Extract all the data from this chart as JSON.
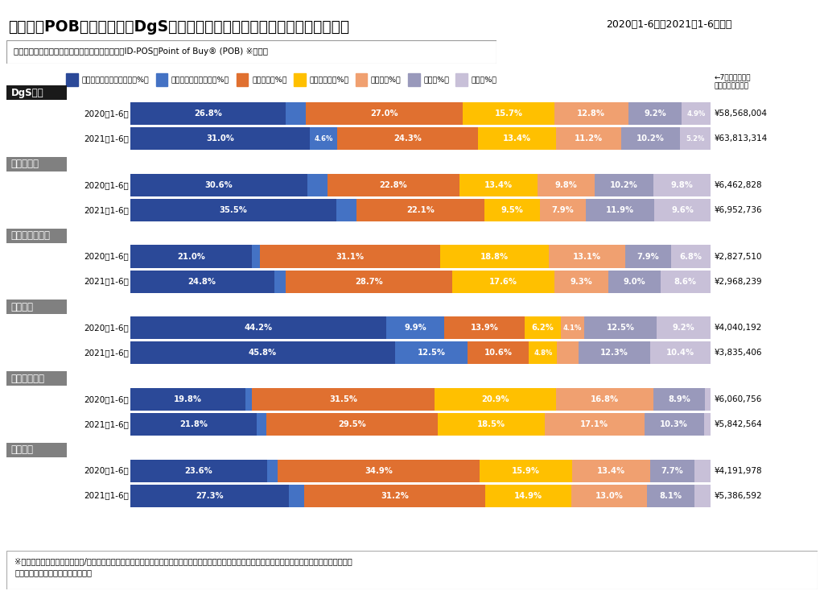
{
  "title": "図表１）POBデータ分析：DgSレシート合計金額に占めるカテゴリー構成比",
  "subtitle": "2020年1-6月と2021年1-6月比較",
  "source_text": "ソフトブレーン・フィールド調べ　　マルチプルID-POS「Point of Buy® (POB) ※」より",
  "footnote_line1": "※全国の消費者から実際に購入/利用したレシートを収集し、ブランドカテゴリや利用サービス、実際の飲食店ごとのレシートを通して集計したマルチプル",
  "footnote_line2": "リテール購買データのデータベース",
  "receipt_note": "←7カテゴリーの\n合計レシート金額",
  "legend_items": [
    {
      "label": "食品（生鮮・総菜以外）（%）",
      "color": "#2b4998"
    },
    {
      "label": "食品（生鮮・総菜）（%）",
      "color": "#4472c4"
    },
    {
      "label": "日用雑貨（%）",
      "color": "#e07030"
    },
    {
      "label": "美容・健康（%）",
      "color": "#ffc000"
    },
    {
      "label": "医薬品（%）",
      "color": "#f0a070"
    },
    {
      "label": "飲料（%）",
      "color": "#9999bb"
    },
    {
      "label": "酒類（%）",
      "color": "#c8c0d8"
    }
  ],
  "groups": [
    {
      "name": "DgS全体",
      "label_bg": "#1a1a1a",
      "rows": [
        {
          "year": "2020年1-6月",
          "values": [
            26.8,
            3.5,
            27.0,
            15.7,
            12.8,
            9.2,
            4.9
          ],
          "receipt": "¥58,568,004"
        },
        {
          "year": "2021年1-6月",
          "values": [
            31.0,
            4.6,
            24.3,
            13.4,
            11.2,
            10.2,
            5.2
          ],
          "receipt": "¥63,813,314"
        }
      ]
    },
    {
      "name": "ウエルシア",
      "label_bg": "#808080",
      "rows": [
        {
          "year": "2020年1-6月",
          "values": [
            30.6,
            3.4,
            22.8,
            13.4,
            9.8,
            10.2,
            9.8
          ],
          "receipt": "¥6,462,828"
        },
        {
          "year": "2021年1-6月",
          "values": [
            35.5,
            3.4,
            22.1,
            9.5,
            7.9,
            11.9,
            9.6
          ],
          "receipt": "¥6,952,736"
        }
      ]
    },
    {
      "name": "ツルハドラッグ",
      "label_bg": "#808080",
      "rows": [
        {
          "year": "2020年1-6月",
          "values": [
            21.0,
            1.3,
            31.1,
            18.8,
            13.1,
            7.9,
            6.8
          ],
          "receipt": "¥2,827,510"
        },
        {
          "year": "2021年1-6月",
          "values": [
            24.8,
            2.0,
            28.7,
            17.6,
            9.3,
            9.0,
            8.6
          ],
          "receipt": "¥2,968,239"
        }
      ]
    },
    {
      "name": "コスモス",
      "label_bg": "#808080",
      "rows": [
        {
          "year": "2020年1-6月",
          "values": [
            44.2,
            9.9,
            13.9,
            6.2,
            4.1,
            12.5,
            9.2
          ],
          "receipt": "¥4,040,192"
        },
        {
          "year": "2021年1-6月",
          "values": [
            45.8,
            12.5,
            10.6,
            4.8,
            3.8,
            12.3,
            10.4
          ],
          "receipt": "¥3,835,406"
        }
      ]
    },
    {
      "name": "サンドラッグ",
      "label_bg": "#808080",
      "rows": [
        {
          "year": "2020年1-6月",
          "values": [
            19.8,
            1.2,
            31.5,
            20.9,
            16.8,
            8.9,
            0.9
          ],
          "receipt": "¥6,060,756"
        },
        {
          "year": "2021年1-6月",
          "values": [
            21.8,
            1.7,
            29.5,
            18.5,
            17.1,
            10.3,
            1.1
          ],
          "receipt": "¥5,842,564"
        }
      ]
    },
    {
      "name": "スギ薬局",
      "label_bg": "#808080",
      "rows": [
        {
          "year": "2020年1-6月",
          "values": [
            23.6,
            1.8,
            34.9,
            15.9,
            13.4,
            7.7,
            2.7
          ],
          "receipt": "¥4,191,978"
        },
        {
          "year": "2021年1-6月",
          "values": [
            27.3,
            2.7,
            31.2,
            14.9,
            13.0,
            8.1,
            2.8
          ],
          "receipt": "¥5,386,592"
        }
      ]
    }
  ]
}
